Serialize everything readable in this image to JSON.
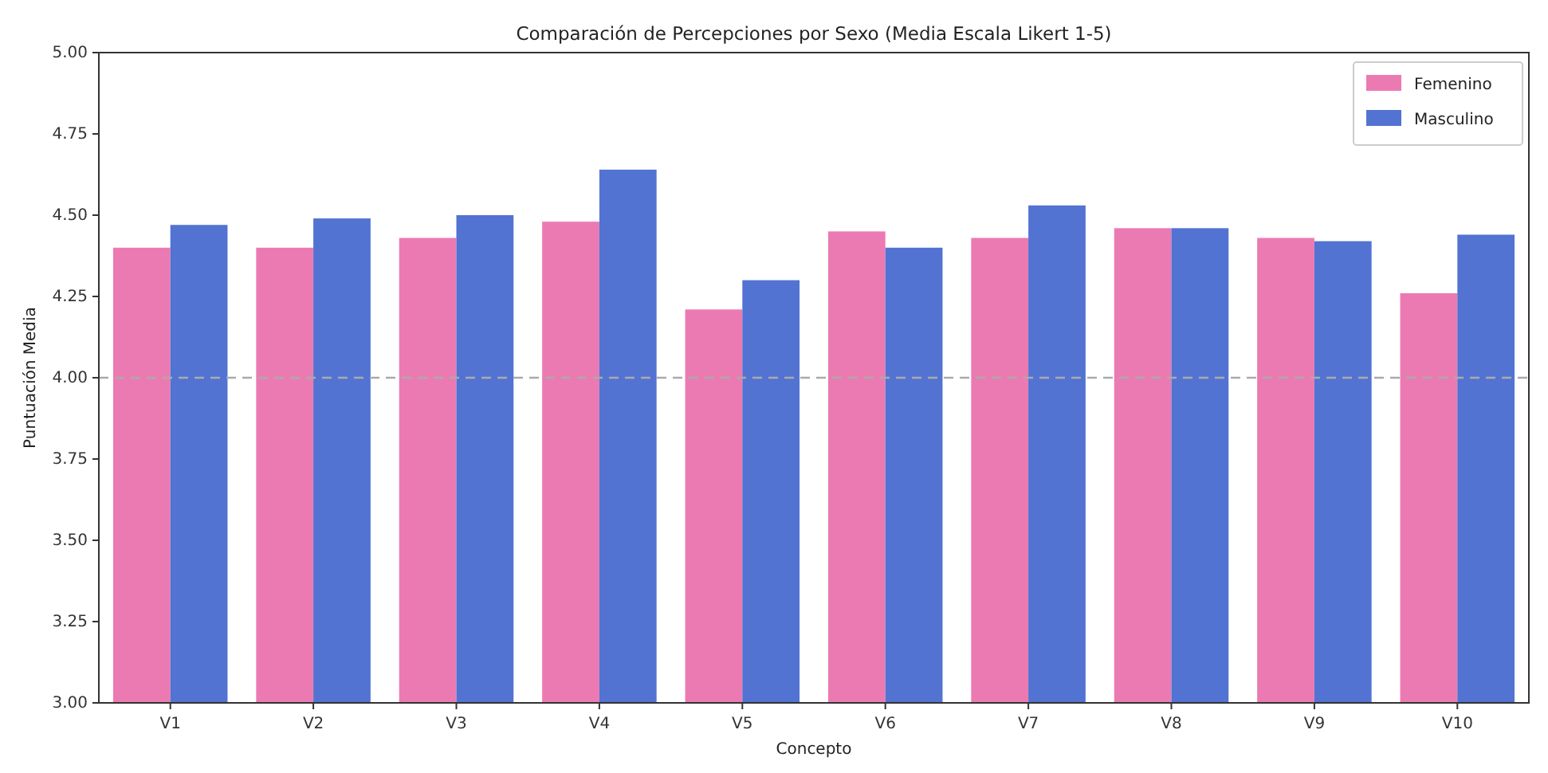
{
  "chart_data": {
    "type": "bar",
    "title": "Comparación de Percepciones por Sexo (Media Escala Likert 1-5)",
    "xlabel": "Concepto",
    "ylabel": "Puntuación Media",
    "categories": [
      "V1",
      "V2",
      "V3",
      "V4",
      "V5",
      "V6",
      "V7",
      "V8",
      "V9",
      "V10"
    ],
    "series": [
      {
        "name": "Femenino",
        "color": "#ec7ab2",
        "values": [
          4.4,
          4.4,
          4.43,
          4.48,
          4.21,
          4.45,
          4.43,
          4.46,
          4.43,
          4.26
        ]
      },
      {
        "name": "Masculino",
        "color": "#5273d1",
        "values": [
          4.47,
          4.49,
          4.5,
          4.64,
          4.3,
          4.4,
          4.53,
          4.46,
          4.42,
          4.44
        ]
      }
    ],
    "ylim": [
      3,
      5
    ],
    "yticks": [
      {
        "value": 3,
        "label": "3.00"
      },
      {
        "value": 3.25,
        "label": "3.25"
      },
      {
        "value": 3.5,
        "label": "3.50"
      },
      {
        "value": 3.75,
        "label": "3.75"
      },
      {
        "value": 4,
        "label": "4.00"
      },
      {
        "value": 4.25,
        "label": "4.25"
      },
      {
        "value": 4.5,
        "label": "4.50"
      },
      {
        "value": 4.75,
        "label": "4.75"
      },
      {
        "value": 5,
        "label": "5.00"
      }
    ],
    "ref_lines": [
      {
        "axis": "y",
        "value": 4,
        "color": "#aaaaaa",
        "line_style": "dashed"
      }
    ],
    "legend": "top right",
    "grid": false
  }
}
